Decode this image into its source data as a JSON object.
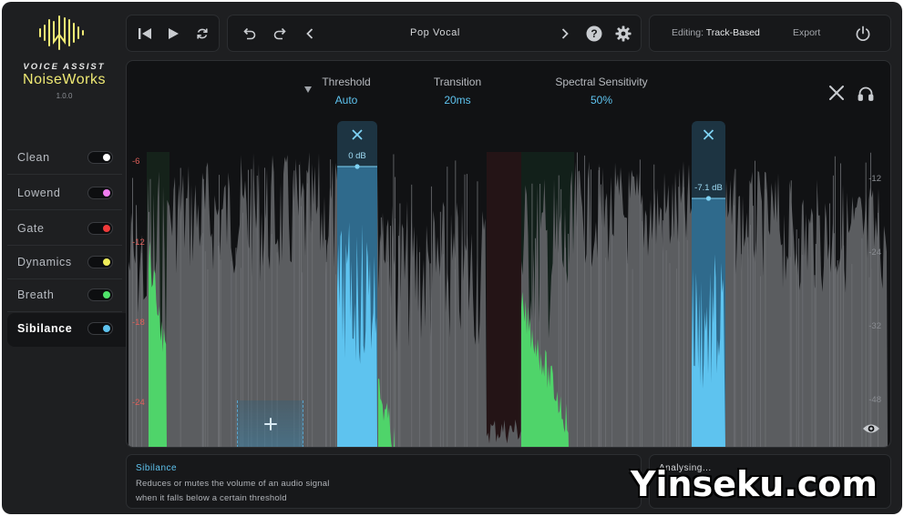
{
  "brand": {
    "tagline": "VOICE ASSIST",
    "name": "NoiseWorks",
    "version": "1.0.0"
  },
  "modules": [
    {
      "label": "Clean",
      "color": "#ffffff",
      "active": false
    },
    {
      "label": "Lowend",
      "color": "#f07df0",
      "active": false
    },
    {
      "label": "Gate",
      "color": "#f03a3a",
      "active": false
    },
    {
      "label": "Dynamics",
      "color": "#f0ee5a",
      "active": false
    },
    {
      "label": "Breath",
      "color": "#4fe36a",
      "active": false
    },
    {
      "label": "Sibilance",
      "color": "#5ec3ef",
      "active": true
    }
  ],
  "transport": {
    "icons": [
      "skip-back-icon",
      "play-icon",
      "loop-icon"
    ]
  },
  "preset": {
    "name": "Pop Vocal",
    "icons": [
      "undo-icon",
      "redo-icon",
      "chevron-left-icon",
      "chevron-right-icon",
      "help-icon",
      "settings-icon"
    ]
  },
  "header_right": {
    "editing_prefix": "Editing:",
    "editing_mode": "Track-Based",
    "export_label": "Export"
  },
  "params": [
    {
      "label": "Threshold",
      "value": "Auto"
    },
    {
      "label": "Transition",
      "value": "20ms"
    },
    {
      "label": "Spectral Sensitivity",
      "value": "50%"
    }
  ],
  "db_scale_left": [
    "-6",
    "-12",
    "-18",
    "-24"
  ],
  "db_scale_right": [
    "-12",
    "-24",
    "-32",
    "-48"
  ],
  "bands": [
    {
      "gain_label": "0 dB",
      "gain_db": 0
    },
    {
      "gain_label": "-7.1 dB",
      "gain_db": -7.1
    }
  ],
  "info": {
    "title": "Sibilance",
    "line1": "Reduces or mutes the volume of an audio signal",
    "line2": "when it falls below a certain threshold"
  },
  "status": {
    "text": "Analysing..."
  },
  "colors": {
    "accent": "#5ec3ef",
    "brand": "#f0ea74",
    "green": "#4fd46a",
    "waveform": "#5b5d60"
  },
  "watermark": "Yinseku.com"
}
